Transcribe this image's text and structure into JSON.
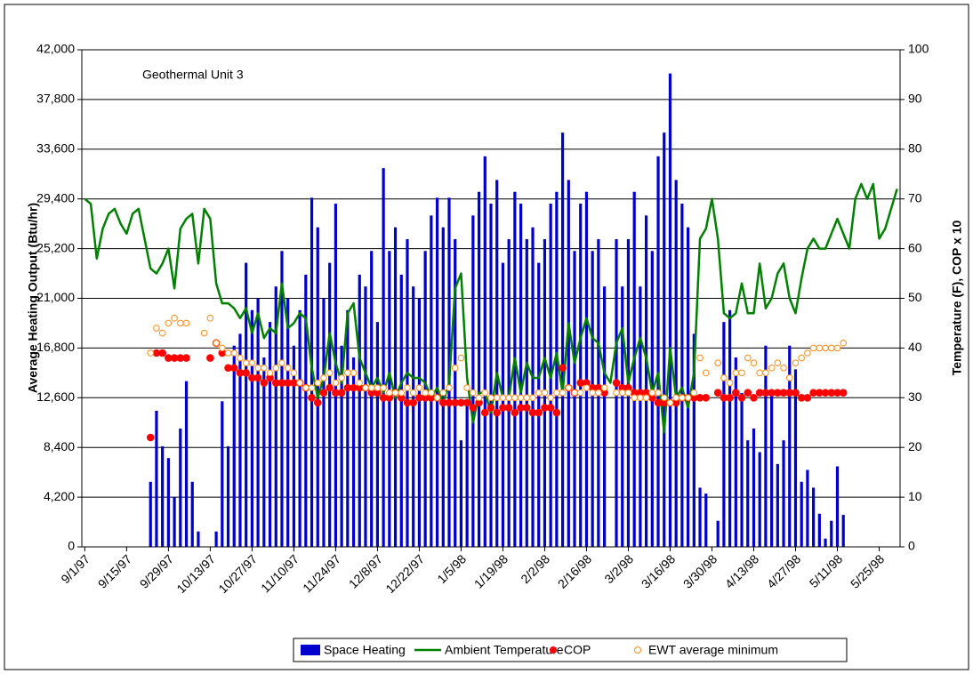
{
  "chart_data": {
    "type": "bar",
    "annotation": "Geothermal Unit 3",
    "ylabel": "Average Heating Output (Btu/hr)",
    "y2label": "Temperature (F), COP x 10",
    "x": [
      "9/1/97",
      "9/3/97",
      "9/5/97",
      "9/7/97",
      "9/9/97",
      "9/11/97",
      "9/13/97",
      "9/15/97",
      "9/17/97",
      "9/19/97",
      "9/21/97",
      "9/23/97",
      "9/25/97",
      "9/27/97",
      "9/29/97",
      "10/1/97",
      "10/3/97",
      "10/5/97",
      "10/7/97",
      "10/9/97",
      "10/11/97",
      "10/13/97",
      "10/15/97",
      "10/17/97",
      "10/19/97",
      "10/21/97",
      "10/23/97",
      "10/25/97",
      "10/27/97",
      "10/29/97",
      "10/31/97",
      "11/2/97",
      "11/4/97",
      "11/6/97",
      "11/8/97",
      "11/10/97",
      "11/12/97",
      "11/14/97",
      "11/16/97",
      "11/18/97",
      "11/20/97",
      "11/22/97",
      "11/24/97",
      "11/26/97",
      "11/28/97",
      "11/30/97",
      "12/2/97",
      "12/4/97",
      "12/6/97",
      "12/8/97",
      "12/10/97",
      "12/12/97",
      "12/14/97",
      "12/16/97",
      "12/18/97",
      "12/20/97",
      "12/22/97",
      "12/24/97",
      "12/26/97",
      "12/28/97",
      "12/30/97",
      "1/1/98",
      "1/3/98",
      "1/5/98",
      "1/7/98",
      "1/9/98",
      "1/11/98",
      "1/13/98",
      "1/15/98",
      "1/17/98",
      "1/19/98",
      "1/21/98",
      "1/23/98",
      "1/25/98",
      "1/27/98",
      "1/29/98",
      "1/31/98",
      "2/2/98",
      "2/4/98",
      "2/6/98",
      "2/8/98",
      "2/10/98",
      "2/12/98",
      "2/14/98",
      "2/16/98",
      "2/18/98",
      "2/20/98",
      "2/22/98",
      "2/24/98",
      "2/26/98",
      "2/28/98",
      "3/2/98",
      "3/4/98",
      "3/6/98",
      "3/8/98",
      "3/10/98",
      "3/12/98",
      "3/14/98",
      "3/16/98",
      "3/18/98",
      "3/20/98",
      "3/22/98",
      "3/24/98",
      "3/26/98",
      "3/28/98",
      "3/30/98",
      "4/1/98",
      "4/3/98",
      "4/5/98",
      "4/7/98",
      "4/9/98",
      "4/11/98",
      "4/13/98",
      "4/15/98",
      "4/17/98",
      "4/19/98",
      "4/21/98",
      "4/23/98",
      "4/25/98",
      "4/27/98",
      "4/29/98",
      "5/1/98",
      "5/3/98",
      "5/5/98",
      "5/7/98",
      "5/9/98",
      "5/11/98",
      "5/13/98",
      "5/15/98",
      "5/17/98",
      "5/19/98",
      "5/21/98",
      "5/23/98",
      "5/25/98",
      "5/27/98",
      "5/29/98",
      "5/31/98"
    ],
    "xticks": [
      "9/1/97",
      "9/15/97",
      "9/29/97",
      "10/13/97",
      "10/27/97",
      "11/10/97",
      "11/24/97",
      "12/8/97",
      "12/22/97",
      "1/5/98",
      "1/19/98",
      "2/2/98",
      "2/16/98",
      "3/2/98",
      "3/16/98",
      "3/30/98",
      "4/13/98",
      "4/27/98",
      "5/11/98",
      "5/25/98"
    ],
    "ylim": [
      0,
      42000
    ],
    "yticks": [
      0,
      {
        "value": 4200,
        "label": "4,200"
      },
      {
        "value": 8400,
        "label": "8,400"
      },
      {
        "value": 12600,
        "label": "12,600"
      },
      {
        "value": 16800,
        "label": "16,800"
      },
      {
        "value": 21000,
        "label": "21,000"
      },
      {
        "value": 25200,
        "label": "25,200"
      },
      {
        "value": 29400,
        "label": "29,400"
      },
      {
        "value": 33600,
        "label": "33,600"
      },
      {
        "value": 37800,
        "label": "37,800"
      },
      {
        "value": 42000,
        "label": "42,000"
      }
    ],
    "y2lim": [
      0,
      100
    ],
    "y2ticks": [
      0,
      10,
      20,
      30,
      40,
      50,
      60,
      70,
      80,
      90,
      100
    ],
    "grid": true,
    "legend": "bottom",
    "series": [
      {
        "name": "Space Heating",
        "type": "bar",
        "color": "#0000cc",
        "values": [
          null,
          null,
          null,
          null,
          null,
          null,
          null,
          null,
          null,
          null,
          null,
          5500,
          11500,
          8500,
          7500,
          4200,
          10000,
          14000,
          5500,
          1300,
          null,
          null,
          1300,
          12300,
          8500,
          17000,
          18000,
          24000,
          20000,
          21000,
          16000,
          19000,
          22000,
          25000,
          21000,
          17000,
          20000,
          23000,
          29500,
          27000,
          21000,
          24000,
          29000,
          17000,
          20000,
          16000,
          23000,
          22000,
          25000,
          19000,
          32000,
          25000,
          27000,
          23000,
          26000,
          22000,
          21000,
          25000,
          28000,
          29500,
          27000,
          29500,
          26000,
          9000,
          12000,
          28000,
          30000,
          33000,
          29000,
          31000,
          24000,
          26000,
          30000,
          29000,
          26000,
          27000,
          24000,
          26000,
          29000,
          30000,
          35000,
          31000,
          25000,
          29000,
          30000,
          25000,
          26000,
          22000,
          null,
          26000,
          22000,
          26000,
          30000,
          22000,
          28000,
          25000,
          33000,
          35000,
          40000,
          31000,
          29000,
          27000,
          18000,
          5000,
          4500,
          null,
          2200,
          19000,
          20000,
          16000,
          13000,
          9000,
          10000,
          8000,
          17000,
          13000,
          7000,
          9000,
          17000,
          15000,
          5500,
          6500,
          5000,
          2800,
          700,
          2200,
          6800,
          2700,
          null,
          null,
          null,
          null,
          null,
          null,
          null,
          null,
          null
        ]
      },
      {
        "name": "Ambient Temperature",
        "type": "line",
        "axis": "y2",
        "color": "#008000",
        "values": [
          70,
          69,
          58,
          64,
          67,
          68,
          65,
          63,
          67,
          68,
          62,
          56,
          55,
          57,
          60,
          52,
          64,
          66,
          67,
          57,
          68,
          66,
          53,
          49,
          49,
          48,
          46,
          48,
          43,
          47,
          42,
          44,
          43,
          53,
          44,
          45,
          47,
          46,
          36,
          30,
          34,
          43,
          37,
          33,
          47,
          49,
          38,
          35,
          32,
          34,
          31,
          35,
          30,
          33,
          35,
          34,
          34,
          33,
          30,
          32,
          29,
          33,
          52,
          55,
          34,
          25,
          31,
          31,
          27,
          35,
          30,
          30,
          38,
          31,
          37,
          34,
          34,
          38,
          34,
          39,
          31,
          45,
          37,
          42,
          46,
          42,
          41,
          35,
          33,
          41,
          44,
          33,
          38,
          42,
          38,
          31,
          35,
          23,
          40,
          30,
          32,
          28,
          35,
          62,
          64,
          70,
          62,
          47,
          46,
          47,
          53,
          47,
          47,
          57,
          48,
          50,
          55,
          57,
          50,
          47,
          54,
          60,
          62,
          60,
          60,
          63,
          66,
          63,
          60,
          70,
          73,
          70,
          73,
          62,
          64,
          68,
          72
        ]
      },
      {
        "name": "COP",
        "type": "scatter",
        "marker": "filled",
        "axis": "y2",
        "color": "#ff0000",
        "values": [
          null,
          null,
          null,
          null,
          null,
          null,
          null,
          null,
          null,
          null,
          null,
          22,
          39,
          39,
          38,
          38,
          38,
          38,
          null,
          null,
          null,
          38,
          41,
          39,
          36,
          36,
          35,
          35,
          34,
          34,
          33,
          34,
          33,
          33,
          33,
          33,
          33,
          32,
          30,
          29,
          31,
          32,
          31,
          31,
          32,
          32,
          32,
          32,
          31,
          31,
          30,
          30,
          31,
          30,
          29,
          29,
          30,
          30,
          30,
          30,
          29,
          29,
          29,
          29,
          29,
          28,
          29,
          27,
          28,
          27,
          28,
          28,
          27,
          28,
          28,
          27,
          27,
          28,
          28,
          27,
          36,
          32,
          31,
          33,
          33,
          32,
          32,
          31,
          null,
          33,
          32,
          32,
          31,
          31,
          31,
          30,
          29,
          29,
          29,
          29,
          30,
          30,
          30,
          30,
          30,
          null,
          31,
          30,
          30,
          31,
          30,
          31,
          30,
          31,
          31,
          31,
          31,
          31,
          31,
          31,
          30,
          30,
          31,
          31,
          31,
          31,
          31,
          31,
          null,
          null,
          null,
          null,
          null,
          null,
          null,
          null,
          null
        ]
      },
      {
        "name": "EWT average minimum",
        "type": "scatter",
        "marker": "open",
        "axis": "y2",
        "color": "#ff8c1a",
        "values": [
          null,
          null,
          null,
          null,
          null,
          null,
          null,
          null,
          null,
          null,
          null,
          39,
          44,
          43,
          45,
          46,
          45,
          45,
          null,
          null,
          43,
          46,
          41,
          40,
          39,
          39,
          38,
          37,
          37,
          36,
          36,
          35,
          36,
          37,
          36,
          35,
          33,
          32,
          32,
          33,
          34,
          35,
          33,
          34,
          35,
          35,
          33,
          32,
          32,
          32,
          32,
          31,
          31,
          31,
          32,
          31,
          32,
          31,
          31,
          30,
          31,
          32,
          36,
          38,
          32,
          31,
          30,
          31,
          30,
          30,
          30,
          30,
          30,
          30,
          30,
          30,
          31,
          31,
          30,
          31,
          31,
          32,
          31,
          31,
          32,
          31,
          31,
          32,
          null,
          31,
          31,
          31,
          30,
          30,
          30,
          31,
          31,
          30,
          29,
          30,
          30,
          30,
          31,
          38,
          35,
          null,
          37,
          34,
          33,
          35,
          35,
          38,
          37,
          35,
          35,
          36,
          37,
          36,
          34,
          37,
          38,
          39,
          40,
          40,
          40,
          40,
          40,
          41,
          null,
          null,
          null,
          null,
          null,
          null,
          null,
          null,
          null
        ]
      }
    ]
  }
}
